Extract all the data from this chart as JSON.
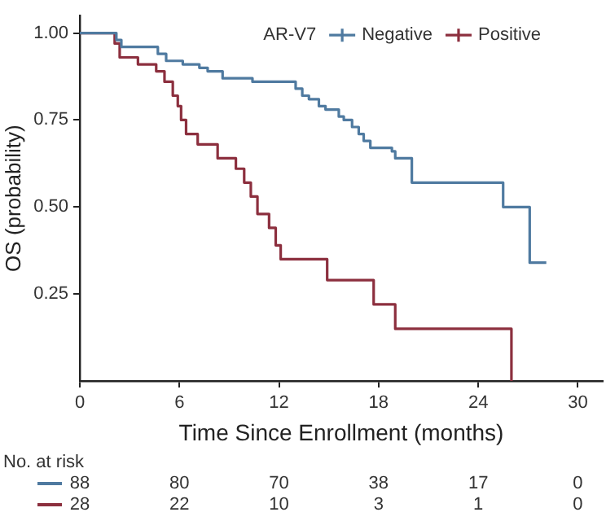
{
  "chart_data": {
    "type": "step",
    "xlabel": "Time Since Enrollment (months)",
    "ylabel": "OS (probability)",
    "legend_title": "AR-V7",
    "legend": "top right",
    "grid": false,
    "xlim": [
      0,
      31.5
    ],
    "xticks": [
      0,
      6,
      12,
      18,
      24,
      30
    ],
    "ylim": [
      0,
      1.05
    ],
    "yticks": [
      {
        "value": 0.25,
        "label": "0.25"
      },
      {
        "value": 0.5,
        "label": "0.50"
      },
      {
        "value": 0.75,
        "label": "0.75"
      },
      {
        "value": 1,
        "label": "1.00"
      }
    ],
    "series": [
      {
        "name": "Negative",
        "color": "#4f7aa0",
        "x": [
          0,
          2.2,
          2.5,
          4.7,
          5.2,
          6.2,
          7.2,
          7.7,
          8.6,
          10.4,
          13.0,
          13.4,
          13.8,
          14.4,
          14.8,
          15.6,
          15.9,
          16.4,
          16.8,
          17.1,
          17.5,
          18.8,
          19.0,
          20.0,
          25.5,
          27.1,
          28.1
        ],
        "values": [
          1,
          0.98,
          0.96,
          0.94,
          0.92,
          0.91,
          0.9,
          0.89,
          0.87,
          0.86,
          0.84,
          0.82,
          0.81,
          0.79,
          0.78,
          0.76,
          0.75,
          0.73,
          0.71,
          0.69,
          0.67,
          0.66,
          0.64,
          0.57,
          0.5,
          0.34,
          0.34
        ]
      },
      {
        "name": "Positive",
        "color": "#8c2f3e",
        "x": [
          0,
          2.1,
          2.4,
          3.5,
          4.6,
          5.1,
          5.6,
          5.9,
          6.1,
          6.4,
          7.1,
          8.3,
          9.4,
          9.9,
          10.3,
          10.7,
          11.4,
          11.8,
          12.1,
          14.9,
          17.7,
          19.0,
          26.0
        ],
        "values": [
          1,
          0.97,
          0.93,
          0.91,
          0.89,
          0.86,
          0.82,
          0.79,
          0.75,
          0.71,
          0.68,
          0.64,
          0.61,
          0.57,
          0.53,
          0.48,
          0.44,
          0.39,
          0.35,
          0.29,
          0.22,
          0.15,
          0
        ]
      }
    ],
    "annotations": [
      "No. at risk",
      "88",
      "80",
      "70",
      "38",
      "17",
      "0",
      "28",
      "22",
      "10",
      "3",
      "1",
      "0"
    ]
  }
}
